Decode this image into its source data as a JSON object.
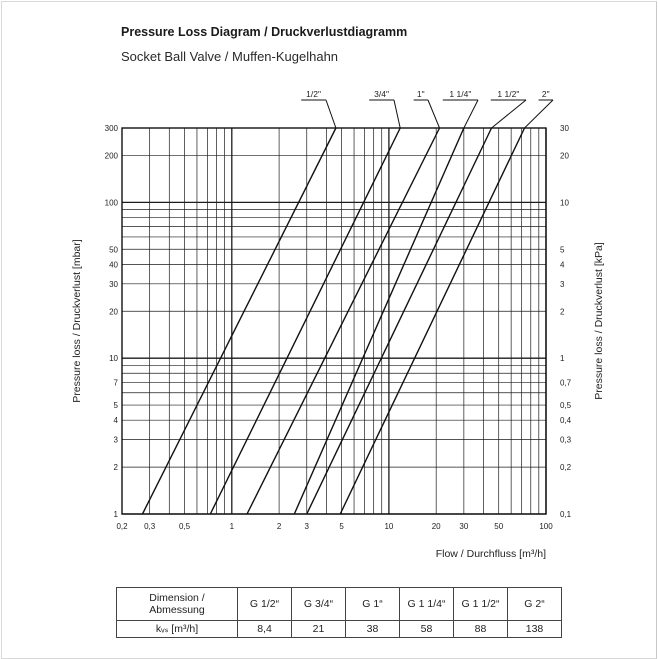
{
  "header": {
    "title": "Pressure Loss Diagram / Druckverlustdiagramm",
    "subtitle": "Socket Ball Valve  / Muffen-Kugelhahn"
  },
  "chart_data": {
    "type": "line",
    "xscale": "log",
    "yscale": "log",
    "xlim": [
      0.2,
      100
    ],
    "ylim": [
      1,
      300
    ],
    "xlabel": "Flow / Durchfluss [m³/h]",
    "ylabel_left": "Pressure loss / Druckverlust [mbar]",
    "ylabel_right": "Pressure loss / Druckverlust [kPa]",
    "x_ticks": [
      {
        "v": 0.2,
        "label": "0,2"
      },
      {
        "v": 0.3,
        "label": "0,3"
      },
      {
        "v": 0.5,
        "label": "0,5"
      },
      {
        "v": 1,
        "label": "1"
      },
      {
        "v": 2,
        "label": "2"
      },
      {
        "v": 3,
        "label": "3"
      },
      {
        "v": 5,
        "label": "5"
      },
      {
        "v": 10,
        "label": "10"
      },
      {
        "v": 20,
        "label": "20"
      },
      {
        "v": 30,
        "label": "30"
      },
      {
        "v": 50,
        "label": "50"
      },
      {
        "v": 100,
        "label": "100"
      }
    ],
    "y_ticks_left": [
      {
        "v": 1,
        "label": "1"
      },
      {
        "v": 2,
        "label": "2"
      },
      {
        "v": 3,
        "label": "3"
      },
      {
        "v": 4,
        "label": "4"
      },
      {
        "v": 5,
        "label": "5"
      },
      {
        "v": 7,
        "label": "7"
      },
      {
        "v": 10,
        "label": "10"
      },
      {
        "v": 20,
        "label": "20"
      },
      {
        "v": 30,
        "label": "30"
      },
      {
        "v": 40,
        "label": "40"
      },
      {
        "v": 50,
        "label": "50"
      },
      {
        "v": 100,
        "label": "100"
      },
      {
        "v": 200,
        "label": "200"
      },
      {
        "v": 300,
        "label": "300"
      }
    ],
    "y_ticks_right": [
      {
        "v": 1,
        "label": "0,1"
      },
      {
        "v": 2,
        "label": "0,2"
      },
      {
        "v": 3,
        "label": "0,3"
      },
      {
        "v": 4,
        "label": "0,4"
      },
      {
        "v": 5,
        "label": "0,5"
      },
      {
        "v": 7,
        "label": "0,7"
      },
      {
        "v": 10,
        "label": "1"
      },
      {
        "v": 20,
        "label": "2"
      },
      {
        "v": 30,
        "label": "3"
      },
      {
        "v": 40,
        "label": "4"
      },
      {
        "v": 50,
        "label": "5"
      },
      {
        "v": 100,
        "label": "10"
      },
      {
        "v": 200,
        "label": "20"
      },
      {
        "v": 300,
        "label": "30"
      }
    ],
    "series": [
      {
        "name": "1/2\"",
        "points": [
          [
            0.27,
            1
          ],
          [
            4.6,
            300
          ]
        ]
      },
      {
        "name": "3/4\"",
        "points": [
          [
            0.73,
            1
          ],
          [
            11.8,
            300
          ]
        ]
      },
      {
        "name": "1\"",
        "points": [
          [
            1.25,
            1
          ],
          [
            21,
            300
          ]
        ]
      },
      {
        "name": "1 1/4\"",
        "points": [
          [
            2.5,
            1
          ],
          [
            30,
            300
          ]
        ]
      },
      {
        "name": "1 1/2\"",
        "points": [
          [
            3.0,
            1
          ],
          [
            45,
            300
          ]
        ]
      },
      {
        "name": "2\"",
        "points": [
          [
            4.9,
            1
          ],
          [
            73,
            300
          ]
        ]
      }
    ]
  },
  "table": {
    "header_label": "Dimension /\nAbmessung",
    "kvs_label": "kᵥₛ [m³/h]",
    "sizes": [
      "G 1/2“",
      "G 3/4“",
      "G 1“",
      "G 1 1/4“",
      "G 1 1/2“",
      "G 2“"
    ],
    "kvs": [
      "8,4",
      "21",
      "38",
      "58",
      "88",
      "138"
    ]
  }
}
